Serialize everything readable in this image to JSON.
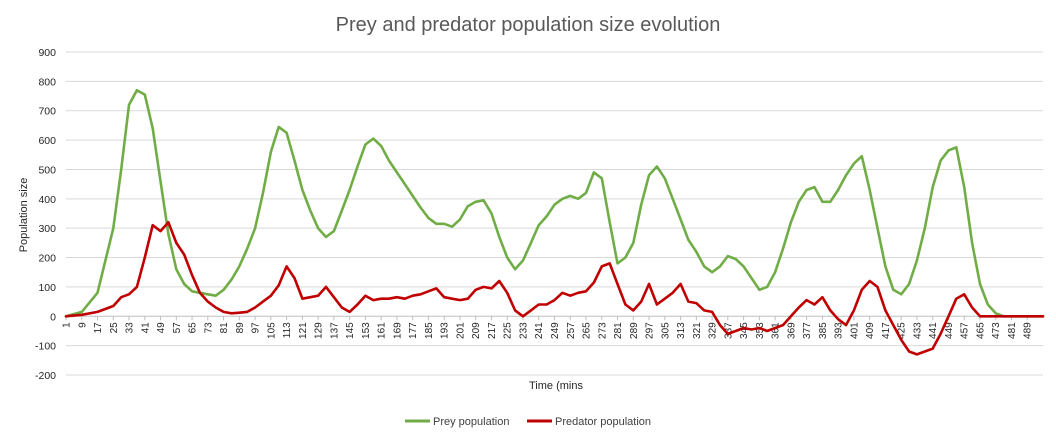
{
  "chart_data": {
    "type": "line",
    "title": "Prey and predator population size evolution",
    "xlabel": "Time (mins",
    "ylabel": "Population size",
    "xlim": [
      1,
      497
    ],
    "ylim": [
      -200,
      900
    ],
    "yticks": [
      -200,
      -100,
      0,
      100,
      200,
      300,
      400,
      500,
      600,
      700,
      800,
      900
    ],
    "xtick_labels": [
      "1",
      "9",
      "17",
      "25",
      "33",
      "41",
      "49",
      "57",
      "65",
      "73",
      "81",
      "89",
      "97",
      "105",
      "113",
      "121",
      "129",
      "137",
      "145",
      "153",
      "161",
      "169",
      "177",
      "185",
      "193",
      "201",
      "209",
      "217",
      "225",
      "233",
      "241",
      "249",
      "257",
      "265",
      "273",
      "281",
      "289",
      "297",
      "305",
      "313",
      "321",
      "329",
      "337",
      "345",
      "353",
      "361",
      "369",
      "377",
      "385",
      "393",
      "401",
      "409",
      "417",
      "425",
      "433",
      "441",
      "449",
      "457",
      "465",
      "473",
      "481",
      "489"
    ],
    "grid": true,
    "legend_position": "bottom",
    "series": [
      {
        "name": "Prey population",
        "color": "#70ad47",
        "points": [
          [
            1,
            0
          ],
          [
            9,
            15
          ],
          [
            17,
            80
          ],
          [
            25,
            300
          ],
          [
            29,
            500
          ],
          [
            33,
            720
          ],
          [
            37,
            770
          ],
          [
            41,
            755
          ],
          [
            45,
            640
          ],
          [
            49,
            460
          ],
          [
            53,
            280
          ],
          [
            57,
            160
          ],
          [
            61,
            110
          ],
          [
            65,
            85
          ],
          [
            69,
            80
          ],
          [
            73,
            75
          ],
          [
            77,
            70
          ],
          [
            81,
            90
          ],
          [
            85,
            125
          ],
          [
            89,
            170
          ],
          [
            93,
            230
          ],
          [
            97,
            300
          ],
          [
            101,
            420
          ],
          [
            105,
            560
          ],
          [
            109,
            645
          ],
          [
            113,
            625
          ],
          [
            117,
            530
          ],
          [
            121,
            430
          ],
          [
            125,
            360
          ],
          [
            129,
            300
          ],
          [
            133,
            270
          ],
          [
            137,
            290
          ],
          [
            141,
            360
          ],
          [
            145,
            430
          ],
          [
            149,
            510
          ],
          [
            153,
            585
          ],
          [
            157,
            605
          ],
          [
            161,
            580
          ],
          [
            165,
            530
          ],
          [
            169,
            490
          ],
          [
            173,
            450
          ],
          [
            177,
            410
          ],
          [
            181,
            370
          ],
          [
            185,
            335
          ],
          [
            189,
            315
          ],
          [
            193,
            315
          ],
          [
            197,
            305
          ],
          [
            201,
            330
          ],
          [
            205,
            375
          ],
          [
            209,
            390
          ],
          [
            213,
            395
          ],
          [
            217,
            350
          ],
          [
            221,
            270
          ],
          [
            225,
            200
          ],
          [
            229,
            160
          ],
          [
            233,
            190
          ],
          [
            237,
            250
          ],
          [
            241,
            310
          ],
          [
            245,
            340
          ],
          [
            249,
            380
          ],
          [
            253,
            400
          ],
          [
            257,
            410
          ],
          [
            261,
            400
          ],
          [
            265,
            420
          ],
          [
            269,
            490
          ],
          [
            273,
            470
          ],
          [
            277,
            320
          ],
          [
            281,
            180
          ],
          [
            285,
            200
          ],
          [
            289,
            250
          ],
          [
            293,
            380
          ],
          [
            297,
            480
          ],
          [
            301,
            510
          ],
          [
            305,
            470
          ],
          [
            309,
            400
          ],
          [
            313,
            330
          ],
          [
            317,
            260
          ],
          [
            321,
            220
          ],
          [
            325,
            170
          ],
          [
            329,
            150
          ],
          [
            333,
            170
          ],
          [
            337,
            205
          ],
          [
            341,
            195
          ],
          [
            345,
            170
          ],
          [
            349,
            130
          ],
          [
            353,
            90
          ],
          [
            357,
            100
          ],
          [
            361,
            150
          ],
          [
            365,
            230
          ],
          [
            369,
            320
          ],
          [
            373,
            390
          ],
          [
            377,
            430
          ],
          [
            381,
            440
          ],
          [
            385,
            390
          ],
          [
            389,
            390
          ],
          [
            393,
            430
          ],
          [
            397,
            480
          ],
          [
            401,
            520
          ],
          [
            405,
            545
          ],
          [
            409,
            430
          ],
          [
            413,
            300
          ],
          [
            417,
            170
          ],
          [
            421,
            90
          ],
          [
            425,
            75
          ],
          [
            429,
            110
          ],
          [
            433,
            190
          ],
          [
            437,
            300
          ],
          [
            441,
            440
          ],
          [
            445,
            530
          ],
          [
            449,
            565
          ],
          [
            453,
            575
          ],
          [
            457,
            440
          ],
          [
            461,
            250
          ],
          [
            465,
            110
          ],
          [
            469,
            40
          ],
          [
            473,
            10
          ],
          [
            477,
            0
          ],
          [
            497,
            0
          ]
        ]
      },
      {
        "name": "Predator population",
        "color": "#c00000",
        "points": [
          [
            1,
            0
          ],
          [
            9,
            5
          ],
          [
            17,
            15
          ],
          [
            25,
            35
          ],
          [
            29,
            65
          ],
          [
            33,
            75
          ],
          [
            37,
            100
          ],
          [
            41,
            200
          ],
          [
            45,
            310
          ],
          [
            49,
            290
          ],
          [
            53,
            320
          ],
          [
            57,
            250
          ],
          [
            61,
            210
          ],
          [
            65,
            140
          ],
          [
            69,
            80
          ],
          [
            73,
            50
          ],
          [
            77,
            30
          ],
          [
            81,
            15
          ],
          [
            85,
            10
          ],
          [
            89,
            12
          ],
          [
            93,
            15
          ],
          [
            97,
            30
          ],
          [
            101,
            50
          ],
          [
            105,
            70
          ],
          [
            109,
            105
          ],
          [
            113,
            170
          ],
          [
            117,
            130
          ],
          [
            121,
            60
          ],
          [
            125,
            65
          ],
          [
            129,
            70
          ],
          [
            133,
            100
          ],
          [
            137,
            65
          ],
          [
            141,
            30
          ],
          [
            145,
            15
          ],
          [
            149,
            40
          ],
          [
            153,
            70
          ],
          [
            157,
            55
          ],
          [
            161,
            60
          ],
          [
            165,
            60
          ],
          [
            169,
            65
          ],
          [
            173,
            60
          ],
          [
            177,
            70
          ],
          [
            181,
            75
          ],
          [
            185,
            85
          ],
          [
            189,
            95
          ],
          [
            193,
            65
          ],
          [
            197,
            60
          ],
          [
            201,
            55
          ],
          [
            205,
            60
          ],
          [
            209,
            90
          ],
          [
            213,
            100
          ],
          [
            217,
            95
          ],
          [
            221,
            120
          ],
          [
            225,
            80
          ],
          [
            229,
            20
          ],
          [
            233,
            0
          ],
          [
            237,
            20
          ],
          [
            241,
            40
          ],
          [
            245,
            40
          ],
          [
            249,
            55
          ],
          [
            253,
            80
          ],
          [
            257,
            70
          ],
          [
            261,
            80
          ],
          [
            265,
            85
          ],
          [
            269,
            115
          ],
          [
            273,
            170
          ],
          [
            277,
            180
          ],
          [
            281,
            110
          ],
          [
            285,
            40
          ],
          [
            289,
            20
          ],
          [
            293,
            50
          ],
          [
            297,
            110
          ],
          [
            301,
            40
          ],
          [
            305,
            60
          ],
          [
            309,
            80
          ],
          [
            313,
            110
          ],
          [
            317,
            50
          ],
          [
            321,
            45
          ],
          [
            325,
            20
          ],
          [
            329,
            15
          ],
          [
            333,
            -30
          ],
          [
            337,
            -60
          ],
          [
            341,
            -50
          ],
          [
            345,
            -40
          ],
          [
            349,
            -45
          ],
          [
            353,
            -40
          ],
          [
            357,
            -50
          ],
          [
            361,
            -40
          ],
          [
            365,
            -30
          ],
          [
            369,
            0
          ],
          [
            373,
            30
          ],
          [
            377,
            55
          ],
          [
            381,
            40
          ],
          [
            385,
            65
          ],
          [
            389,
            20
          ],
          [
            393,
            -10
          ],
          [
            397,
            -30
          ],
          [
            401,
            20
          ],
          [
            405,
            90
          ],
          [
            409,
            120
          ],
          [
            413,
            100
          ],
          [
            417,
            20
          ],
          [
            421,
            -30
          ],
          [
            425,
            -80
          ],
          [
            429,
            -120
          ],
          [
            433,
            -130
          ],
          [
            437,
            -120
          ],
          [
            441,
            -110
          ],
          [
            445,
            -60
          ],
          [
            449,
            0
          ],
          [
            453,
            60
          ],
          [
            457,
            75
          ],
          [
            461,
            30
          ],
          [
            465,
            0
          ],
          [
            497,
            0
          ]
        ]
      }
    ]
  }
}
